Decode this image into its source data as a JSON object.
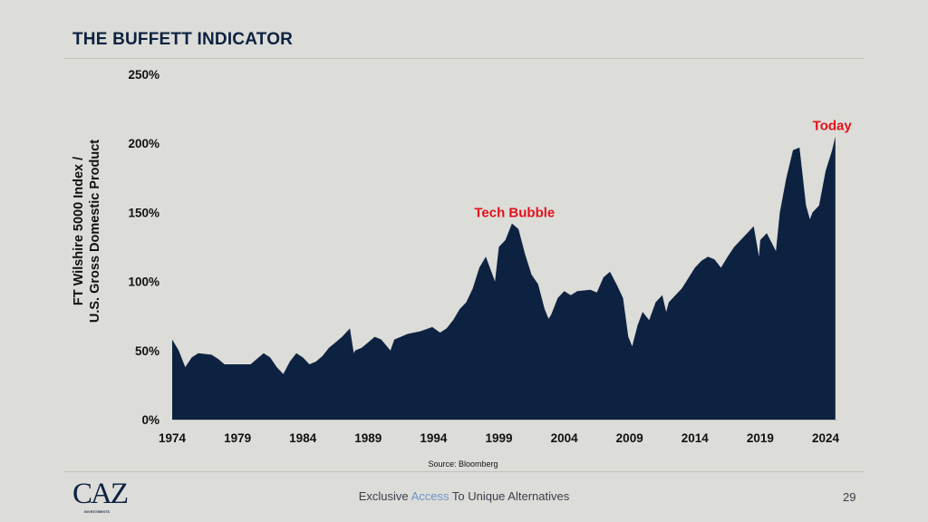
{
  "header": {
    "title": "THE BUFFETT INDICATOR"
  },
  "footer": {
    "tagline_pre": "Exclusive",
    "tagline_accent": "Access",
    "tagline_post": "To Unique Alternatives",
    "page_number": "29",
    "logo_text": "CAZ",
    "logo_subtext": "INVESTMENTS"
  },
  "colors": {
    "fill": "#0d2240",
    "annotation": "#e3111b",
    "background": "#dcdcd8"
  },
  "chart_data": {
    "type": "area",
    "title": "THE BUFFETT INDICATOR",
    "ylabel_line1": "FT Wilshire 5000 Index /",
    "ylabel_line2": "U.S. Gross Domestic Product",
    "xlabel": "",
    "source": "Source: Bloomberg",
    "ylim": [
      0,
      250
    ],
    "xlim": [
      1974,
      2024.75
    ],
    "yticks": [
      0,
      50,
      100,
      150,
      200,
      250
    ],
    "ytick_labels": [
      "0%",
      "50%",
      "100%",
      "150%",
      "200%",
      "250%"
    ],
    "xticks": [
      1974,
      1979,
      1984,
      1989,
      1994,
      1999,
      2004,
      2009,
      2014,
      2019,
      2024
    ],
    "xtick_labels": [
      "1974",
      "1979",
      "1984",
      "1989",
      "1994",
      "1999",
      "2004",
      "2009",
      "2014",
      "2019",
      "2024"
    ],
    "grid": false,
    "annotations": [
      {
        "text": "Tech Bubble",
        "x": 2000.2,
        "y": 150
      },
      {
        "text": "Today",
        "x": 2024.5,
        "y": 213
      }
    ],
    "series": [
      {
        "name": "Wilshire 5000 / GDP (%)",
        "x": [
          1974,
          1974.5,
          1975,
          1975.5,
          1976,
          1977,
          1977.5,
          1978,
          1979,
          1980,
          1980.5,
          1981,
          1981.5,
          1982,
          1982.5,
          1983,
          1983.5,
          1984,
          1984.5,
          1985,
          1985.5,
          1986,
          1986.5,
          1987,
          1987.6,
          1987.9,
          1988,
          1988.5,
          1989,
          1989.5,
          1990,
          1990.7,
          1991,
          1991.5,
          1992,
          1993,
          1993.9,
          1994.5,
          1995,
          1995.5,
          1996,
          1996.5,
          1997,
          1997.5,
          1998,
          1998.7,
          1999,
          1999.5,
          2000,
          2000.5,
          2001,
          2001.5,
          2002,
          2002.5,
          2002.8,
          2003,
          2003.5,
          2004,
          2004.5,
          2005,
          2006,
          2006.5,
          2007,
          2007.5,
          2008,
          2008.5,
          2008.9,
          2009.2,
          2009.6,
          2010,
          2010.5,
          2011,
          2011.5,
          2011.8,
          2012,
          2013,
          2014,
          2014.5,
          2015,
          2015.5,
          2016,
          2016.5,
          2017,
          2018,
          2018.5,
          2018.9,
          2019,
          2019.5,
          2020.2,
          2020.5,
          2021,
          2021.5,
          2022,
          2022.5,
          2022.8,
          2023,
          2023.5,
          2024,
          2024.5,
          2024.75
        ],
        "values": [
          58,
          50,
          38,
          45,
          48,
          47,
          44,
          40,
          40,
          40,
          44,
          48,
          45,
          38,
          33,
          42,
          48,
          45,
          40,
          42,
          46,
          52,
          56,
          60,
          66,
          48,
          50,
          52,
          56,
          60,
          58,
          50,
          58,
          60,
          62,
          64,
          67,
          63,
          66,
          72,
          80,
          85,
          95,
          110,
          118,
          100,
          125,
          130,
          142,
          138,
          120,
          105,
          98,
          80,
          73,
          76,
          88,
          93,
          90,
          93,
          94,
          92,
          103,
          107,
          98,
          88,
          60,
          53,
          68,
          78,
          72,
          85,
          90,
          78,
          85,
          95,
          110,
          115,
          118,
          116,
          110,
          118,
          125,
          135,
          140,
          118,
          130,
          135,
          122,
          150,
          175,
          195,
          197,
          155,
          145,
          150,
          155,
          180,
          195,
          205
        ]
      }
    ]
  }
}
